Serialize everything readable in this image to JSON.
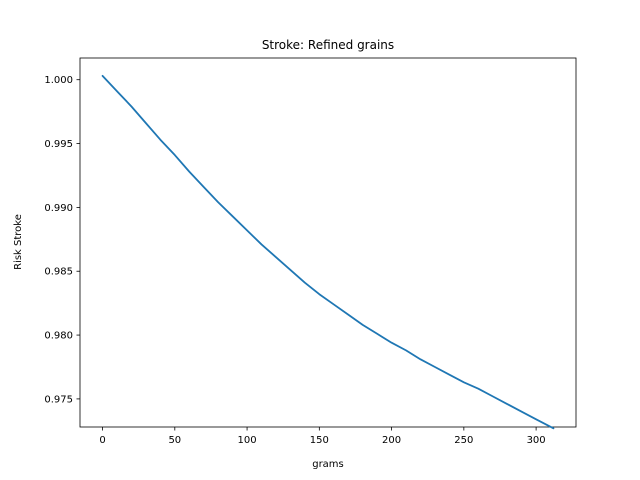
{
  "chart_data": {
    "type": "line",
    "title": "Stroke: Refined grains",
    "xlabel": "grams",
    "ylabel": "Risk Stroke",
    "xlim": [
      -15.6,
      327.6
    ],
    "ylim": [
      0.9728,
      1.0017
    ],
    "xticks": [
      0,
      50,
      100,
      150,
      200,
      250,
      300
    ],
    "xtick_labels": [
      "0",
      "50",
      "100",
      "150",
      "200",
      "250",
      "300"
    ],
    "yticks": [
      0.975,
      0.98,
      0.985,
      0.99,
      0.995,
      1.0
    ],
    "ytick_labels": [
      "0.975",
      "0.980",
      "0.985",
      "0.990",
      "0.995",
      "1.000"
    ],
    "grid": false,
    "series": [
      {
        "color": "#1f77b4",
        "x": [
          0,
          10,
          20,
          30,
          40,
          50,
          60,
          70,
          80,
          90,
          100,
          110,
          120,
          130,
          140,
          150,
          160,
          170,
          180,
          190,
          200,
          210,
          220,
          230,
          240,
          250,
          260,
          270,
          280,
          290,
          300,
          312
        ],
        "y": [
          1.0003,
          0.9991,
          0.9979,
          0.9966,
          0.9953,
          0.9941,
          0.9928,
          0.9916,
          0.9904,
          0.9893,
          0.9882,
          0.9871,
          0.9861,
          0.9851,
          0.9841,
          0.9832,
          0.9824,
          0.9816,
          0.9808,
          0.9801,
          0.9794,
          0.9788,
          0.9781,
          0.9775,
          0.9769,
          0.9763,
          0.9758,
          0.9752,
          0.9746,
          0.974,
          0.9734,
          0.9727
        ]
      }
    ]
  }
}
